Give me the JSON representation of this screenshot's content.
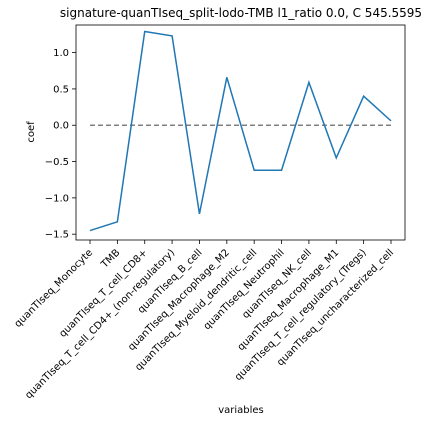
{
  "chart_data": {
    "type": "line",
    "title": "signature-quanTIseq_split-lodo-TMB l1_ratio 0.0, C 545.5595",
    "xlabel": "variables",
    "ylabel": "coef",
    "ylim": [
      -1.58,
      1.38
    ],
    "yticks": [
      -1.5,
      -1.0,
      -0.5,
      0.0,
      0.5,
      1.0
    ],
    "ytick_labels": [
      "−1.5",
      "−1.0",
      "−0.5",
      "0.0",
      "0.5",
      "1.0"
    ],
    "grid": false,
    "categories": [
      "quanTIseq_Monocyte",
      "TMB",
      "quanTIseq_T_cell_CD8+",
      "quanTIseq_T_cell_CD4+_(non-regulatory)",
      "quanTIseq_B_cell",
      "quanTIseq_Macrophage_M2",
      "quanTIseq_Myeloid_dendritic_cell",
      "quanTIseq_Neutrophil",
      "quanTIseq_NK_cell",
      "quanTIseq_Macrophage_M1",
      "quanTIseq_T_cell_regulatory_(Tregs)",
      "quanTIseq_uncharacterized_cell"
    ],
    "values": [
      -1.45,
      -1.33,
      1.29,
      1.23,
      -1.22,
      0.66,
      -0.62,
      -0.62,
      0.59,
      -0.45,
      0.4,
      0.06
    ],
    "reference_line": {
      "y": 0.0,
      "style": "dashed",
      "color": "#808080"
    },
    "line_color": "#1f77b4"
  }
}
